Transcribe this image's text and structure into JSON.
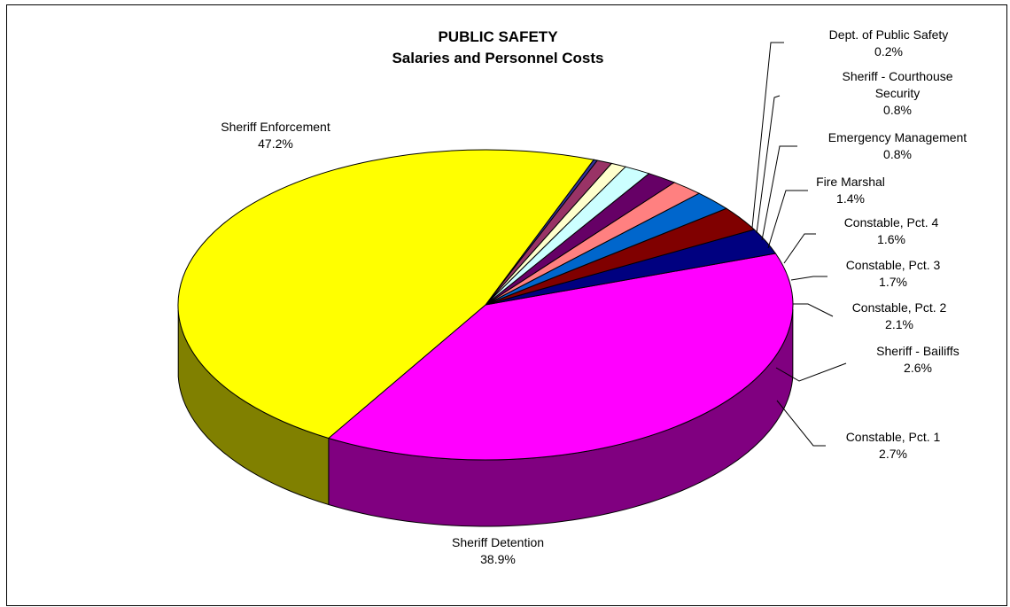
{
  "chart_data": {
    "type": "pie",
    "title": "PUBLIC SAFETY",
    "subtitle": "Salaries and Personnel Costs",
    "slices": [
      {
        "label": "Sheriff Detention",
        "value": 38.9,
        "value_label": "38.9%",
        "color": "#FF00FF"
      },
      {
        "label": "Constable, Pct. 1",
        "value": 2.7,
        "value_label": "2.7%",
        "color": "#000080"
      },
      {
        "label": "Sheriff - Bailiffs",
        "value": 2.6,
        "value_label": "2.6%",
        "color": "#800000"
      },
      {
        "label": "Constable, Pct. 2",
        "value": 2.1,
        "value_label": "2.1%",
        "color": "#0066CC"
      },
      {
        "label": "Constable, Pct. 3",
        "value": 1.7,
        "value_label": "1.7%",
        "color": "#FF8080"
      },
      {
        "label": "Constable, Pct. 4",
        "value": 1.6,
        "value_label": "1.6%",
        "color": "#660066"
      },
      {
        "label": "Fire Marshal",
        "value": 1.4,
        "value_label": "1.4%",
        "color": "#CCFFFF"
      },
      {
        "label": "Emergency Management",
        "value": 0.8,
        "value_label": "0.8%",
        "color": "#FFFFCC"
      },
      {
        "label": "Sheriff - Courthouse Security",
        "label_lines": [
          "Sheriff - Courthouse",
          "Security"
        ],
        "value": 0.8,
        "value_label": "0.8%",
        "color": "#993366"
      },
      {
        "label": "Dept. of Public Safety",
        "value": 0.2,
        "value_label": "0.2%",
        "color": "#333399"
      },
      {
        "label": "Sheriff Enforcement",
        "value": 47.2,
        "value_label": "47.2%",
        "color": "#FFFF00"
      }
    ]
  }
}
